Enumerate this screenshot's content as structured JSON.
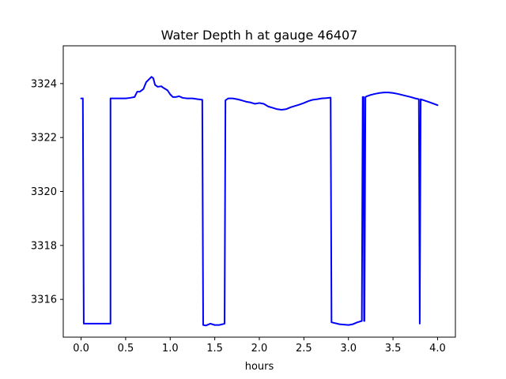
{
  "chart_data": {
    "type": "line",
    "title": "Water Depth h at gauge 46407",
    "xlabel": "hours",
    "ylabel": "",
    "xlim": [
      -0.2,
      4.2
    ],
    "ylim": [
      3314.6,
      3325.4
    ],
    "xticks": [
      0.0,
      0.5,
      1.0,
      1.5,
      2.0,
      2.5,
      3.0,
      3.5,
      4.0
    ],
    "xtick_labels": [
      "0.0",
      "0.5",
      "1.0",
      "1.5",
      "2.0",
      "2.5",
      "3.0",
      "3.5",
      "4.0"
    ],
    "yticks": [
      3316,
      3318,
      3320,
      3322,
      3324
    ],
    "ytick_labels": [
      "3316",
      "3318",
      "3320",
      "3322",
      "3324"
    ],
    "grid": false,
    "colors": {
      "line": "#0000ff",
      "axes": "#000000",
      "background": "#ffffff"
    },
    "series": [
      {
        "x": [
          0.0,
          0.02,
          0.03,
          0.33,
          0.33,
          0.4,
          0.5,
          0.55,
          0.6,
          0.63,
          0.66,
          0.7,
          0.73,
          0.76,
          0.79,
          0.81,
          0.83,
          0.86,
          0.9,
          0.93,
          0.97,
          1.0,
          1.03,
          1.06,
          1.1,
          1.14,
          1.19,
          1.25,
          1.31,
          1.36,
          1.37,
          1.4,
          1.45,
          1.5,
          1.55,
          1.61,
          1.62,
          1.65,
          1.7,
          1.75,
          1.8,
          1.85,
          1.9,
          1.95,
          2.0,
          2.05,
          2.1,
          2.15,
          2.2,
          2.25,
          2.3,
          2.35,
          2.4,
          2.45,
          2.5,
          2.55,
          2.6,
          2.65,
          2.7,
          2.75,
          2.8,
          2.81,
          2.9,
          3.0,
          3.05,
          3.1,
          3.15,
          3.16,
          3.17,
          3.175,
          3.18,
          3.19,
          3.2,
          3.25,
          3.3,
          3.35,
          3.4,
          3.45,
          3.5,
          3.55,
          3.6,
          3.65,
          3.7,
          3.75,
          3.79,
          3.8,
          3.81,
          3.9,
          4.0
        ],
        "y": [
          3323.45,
          3323.45,
          3315.1,
          3315.1,
          3323.45,
          3323.45,
          3323.45,
          3323.47,
          3323.5,
          3323.7,
          3323.7,
          3323.8,
          3324.05,
          3324.15,
          3324.25,
          3324.2,
          3323.95,
          3323.88,
          3323.9,
          3323.83,
          3323.75,
          3323.6,
          3323.5,
          3323.5,
          3323.53,
          3323.47,
          3323.45,
          3323.45,
          3323.42,
          3323.4,
          3315.05,
          3315.03,
          3315.1,
          3315.05,
          3315.05,
          3315.1,
          3323.38,
          3323.45,
          3323.45,
          3323.42,
          3323.38,
          3323.33,
          3323.3,
          3323.25,
          3323.28,
          3323.25,
          3323.15,
          3323.1,
          3323.05,
          3323.03,
          3323.05,
          3323.12,
          3323.17,
          3323.22,
          3323.28,
          3323.35,
          3323.4,
          3323.42,
          3323.45,
          3323.46,
          3323.48,
          3315.15,
          3315.08,
          3315.05,
          3315.08,
          3315.15,
          3315.2,
          3323.5,
          3323.5,
          3315.2,
          3315.2,
          3323.5,
          3323.52,
          3323.58,
          3323.62,
          3323.65,
          3323.67,
          3323.67,
          3323.65,
          3323.62,
          3323.58,
          3323.54,
          3323.5,
          3323.45,
          3323.42,
          3315.1,
          3323.42,
          3323.32,
          3323.2
        ]
      }
    ]
  }
}
